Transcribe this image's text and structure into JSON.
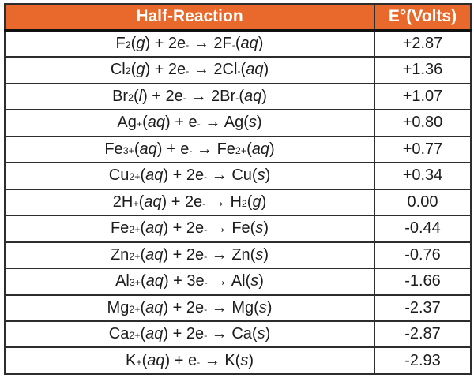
{
  "colors": {
    "header_bg": "#e8692b",
    "header_text": "#ffffff",
    "border": "#2d2d2d",
    "outer_border": "#1a1a1a",
    "row_text": "#1c1c1c",
    "row_bg": "#ffffff"
  },
  "table": {
    "columns": [
      {
        "label": "Half-Reaction"
      },
      {
        "label": "E°(Volts)"
      }
    ],
    "rows": [
      {
        "reaction": "F<sub>2</sub>(<i>g</i>) + 2e<sup>-</sup> → 2F<sup>-</sup>(<i>aq</i>)",
        "potential": "+2.87"
      },
      {
        "reaction": "Cl<sub>2</sub>(<i>g</i>) + 2e<sup>-</sup> → 2Cl<sup>-</sup>(<i>aq</i>)",
        "potential": "+1.36"
      },
      {
        "reaction": "Br<sub>2</sub>(<i>l</i>) + 2e<sup>-</sup> → 2Br<sup>-</sup>(<i>aq</i>)",
        "potential": "+1.07"
      },
      {
        "reaction": "Ag<sup>+</sup>(<i>aq</i>) + e<sup>-</sup> → Ag(<i>s</i>)",
        "potential": "+0.80"
      },
      {
        "reaction": "Fe<sup>3+</sup>(<i>aq</i>) + e<sup>-</sup> → Fe<sup>2+</sup>(<i>aq</i>)",
        "potential": "+0.77"
      },
      {
        "reaction": "Cu<sup>2+</sup>(<i>aq</i>) + 2e<sup>-</sup> → Cu(<i>s</i>)",
        "potential": "+0.34"
      },
      {
        "reaction": "2H<sup>+</sup>(<i>aq</i>) + 2e<sup>-</sup> → H<sub>2</sub>(<i>g</i>)",
        "potential": "0.00"
      },
      {
        "reaction": "Fe<sup>2+</sup>(<i>aq</i>) + 2e<sup>-</sup> → Fe(<i>s</i>)",
        "potential": "-0.44"
      },
      {
        "reaction": "Zn<sup>2+</sup>(<i>aq</i>) + 2e<sup>-</sup> → Zn(<i>s</i>)",
        "potential": "-0.76"
      },
      {
        "reaction": "Al<sup>3+</sup>(<i>aq</i>) + 3e<sup>-</sup> → Al(<i>s</i>)",
        "potential": "-1.66"
      },
      {
        "reaction": "Mg<sup>2+</sup>(<i>aq</i>) + 2e<sup>-</sup> → Mg(<i>s</i>)",
        "potential": "-2.37"
      },
      {
        "reaction": "Ca<sup>2+</sup>(<i>aq</i>) + 2e<sup>-</sup> → Ca(<i>s</i>)",
        "potential": "-2.87"
      },
      {
        "reaction": "K<sup>+</sup>(<i>aq</i>) + e<sup>-</sup> → K(<i>s</i>)",
        "potential": "-2.93"
      }
    ]
  }
}
